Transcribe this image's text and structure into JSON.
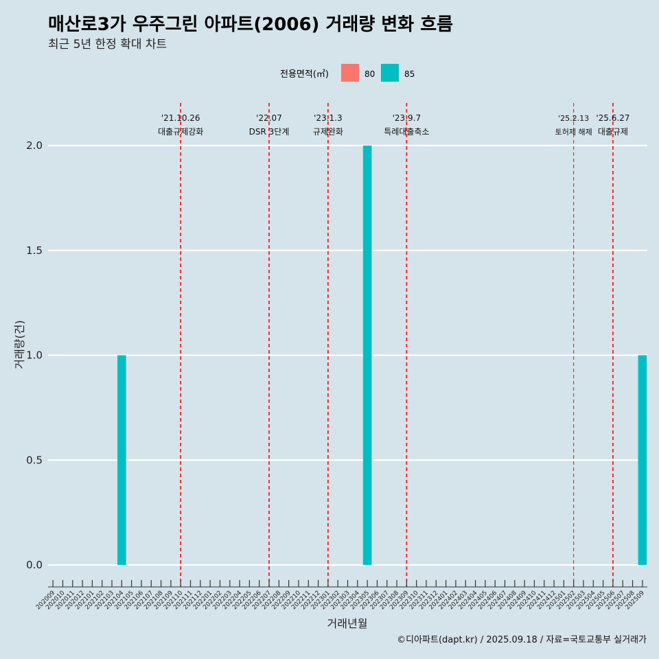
{
  "chart_data": {
    "type": "bar",
    "title": "매산로3가 우주그린 아파트(2006) 거래량 변화 흐름",
    "subtitle": "최근 5년 한정 확대 차트",
    "xlabel": "거래년월",
    "ylabel": "거래량(건)",
    "ylim": [
      0,
      2
    ],
    "yticks": [
      "0.0",
      "0.5",
      "1.0",
      "1.5",
      "2.0"
    ],
    "grid": true,
    "legend": {
      "title": "전용면적(㎡)",
      "position": "top",
      "entries": [
        {
          "name": "80",
          "color": "#f8766d"
        },
        {
          "name": "85",
          "color": "#00bfc4"
        }
      ]
    },
    "categories": [
      "202009",
      "202010",
      "202011",
      "202012",
      "202101",
      "202102",
      "202103",
      "202104",
      "202105",
      "202106",
      "202107",
      "202108",
      "202109",
      "202110",
      "202111",
      "202112",
      "202201",
      "202202",
      "202203",
      "202204",
      "202205",
      "202206",
      "202207",
      "202208",
      "202209",
      "202210",
      "202211",
      "202212",
      "202301",
      "202302",
      "202303",
      "202304",
      "202305",
      "202306",
      "202307",
      "202308",
      "202309",
      "202310",
      "202311",
      "202312",
      "202401",
      "202402",
      "202403",
      "202404",
      "202405",
      "202406",
      "202407",
      "202408",
      "202409",
      "202410",
      "202411",
      "202412",
      "202501",
      "202502",
      "202503",
      "202504",
      "202505",
      "202506",
      "202507",
      "202508",
      "202509"
    ],
    "series": [
      {
        "name": "80",
        "color": "#f8766d",
        "points": []
      },
      {
        "name": "85",
        "color": "#00bfc4",
        "points": [
          {
            "x": "202104",
            "y": 1
          },
          {
            "x": "202305",
            "y": 2
          },
          {
            "x": "202509",
            "y": 1
          }
        ]
      }
    ],
    "annotations": [
      {
        "x": "202110",
        "date": "'21.10.26",
        "label": "대출규제강화",
        "small": false
      },
      {
        "x": "202207",
        "date": "'22.07",
        "label": "DSR 3단계",
        "small": false
      },
      {
        "x": "202301",
        "date": "'23.1.3",
        "label": "규제완화",
        "small": false
      },
      {
        "x": "202309",
        "date": "'23.9.7",
        "label": "특례대출축소",
        "small": false
      },
      {
        "x": "202502",
        "date": "'25.2.13",
        "label": "토허제 해제",
        "small": true
      },
      {
        "x": "202506",
        "date": "'25.6.27",
        "label": "대출규제",
        "small": false
      }
    ],
    "caption": "©디아파트(dapt.kr) / 2025.09.18 / 자료=국토교통부 실거래가"
  }
}
